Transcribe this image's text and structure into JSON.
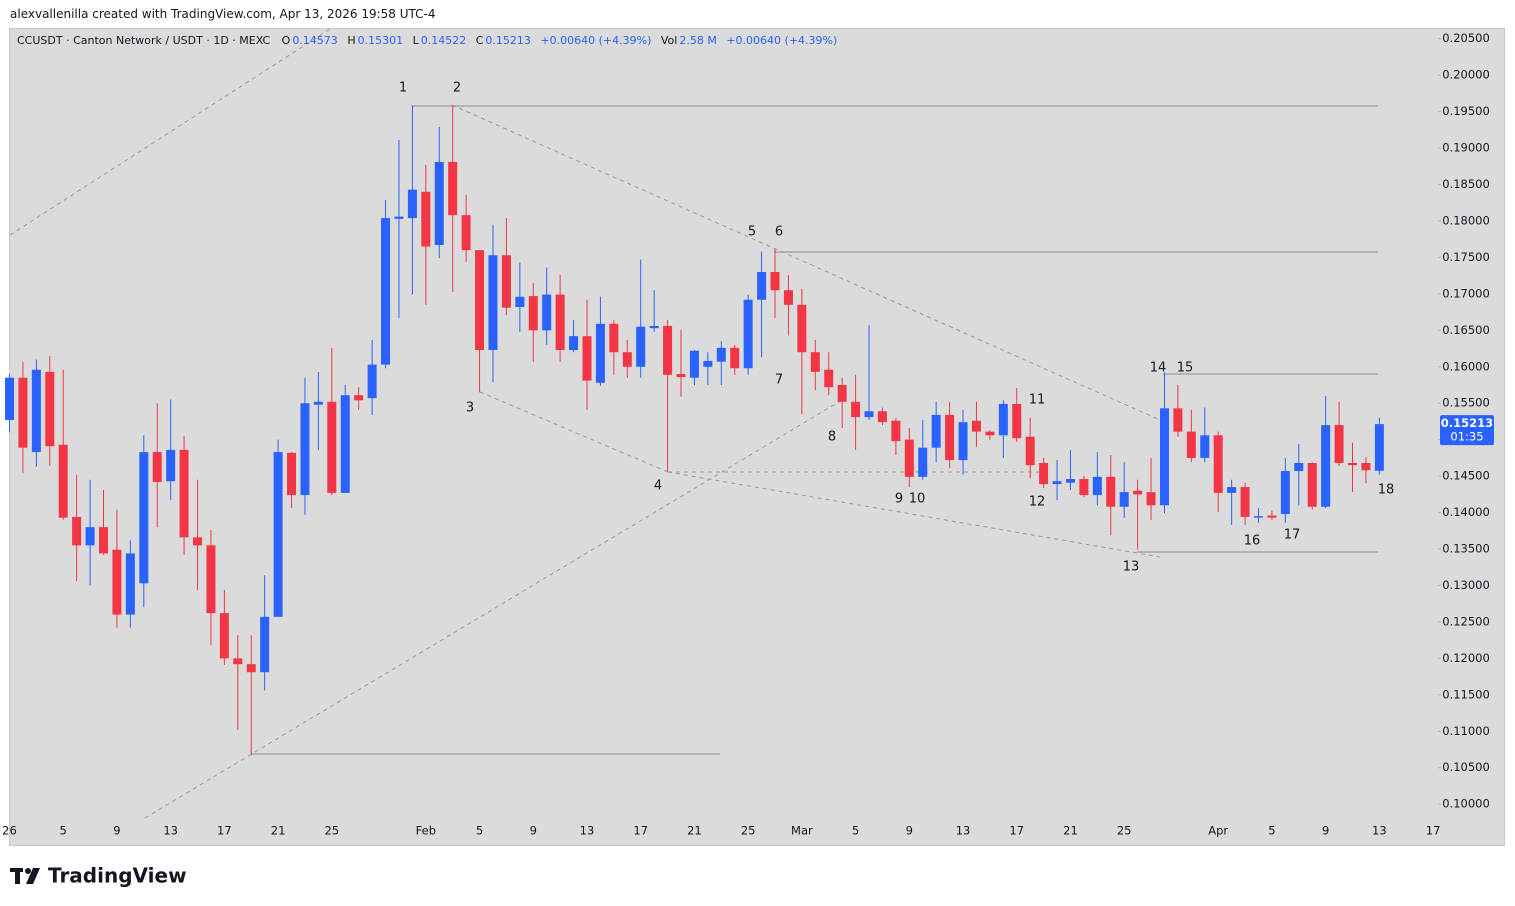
{
  "header": {
    "credit": "alexvallenilla created with TradingView.com, Apr 13, 2026 19:58 UTC-4",
    "symbol": "CCUSDT · Canton Network / USDT · 1D · MEXC",
    "o_label": "O",
    "o_value": "0.14573",
    "h_label": "H",
    "h_value": "0.15301",
    "l_label": "L",
    "l_value": "0.14522",
    "c_label": "C",
    "c_value": "0.15213",
    "change": "+0.00640 (+4.39%)",
    "vol_label": "Vol",
    "vol_value": "2.58 M",
    "vol_change": "+0.00640 (+4.39%)"
  },
  "footer": {
    "brand": "TradingView"
  },
  "chart_data": {
    "type": "candlestick",
    "up_color": "#2962ff",
    "down_color": "#f23645",
    "last_label": "0.15213",
    "countdown": "01:35",
    "annotations": [
      "1",
      "2",
      "3",
      "4",
      "5",
      "6",
      "7",
      "8",
      "9",
      "10",
      "11",
      "12",
      "13",
      "14",
      "15",
      "16",
      "17",
      "18"
    ],
    "categories": [
      "26",
      null,
      null,
      null,
      "5",
      null,
      null,
      null,
      "9",
      null,
      null,
      null,
      "13",
      null,
      null,
      null,
      "17",
      null,
      null,
      null,
      "21",
      null,
      null,
      null,
      "25",
      null,
      null,
      null,
      null,
      null,
      null,
      "Feb",
      null,
      null,
      null,
      "5",
      null,
      null,
      null,
      "9",
      null,
      null,
      null,
      "13",
      null,
      null,
      null,
      "17",
      null,
      null,
      null,
      "21",
      null,
      null,
      null,
      "25",
      null,
      null,
      null,
      "Mar",
      null,
      null,
      null,
      "5",
      null,
      null,
      null,
      "9",
      null,
      null,
      null,
      "13",
      null,
      null,
      null,
      "17",
      null,
      null,
      null,
      "21",
      null,
      null,
      null,
      "25",
      null,
      null,
      null,
      null,
      null,
      null,
      "Apr",
      null,
      null,
      null,
      "5",
      null,
      null,
      null,
      "9",
      null,
      null,
      null,
      "13",
      null,
      null,
      null,
      "17"
    ],
    "open": [
      0.1527,
      0.1585,
      0.1483,
      0.1593,
      0.1493,
      0.1394,
      0.1355,
      0.138,
      0.1349,
      0.126,
      0.1303,
      0.1483,
      0.1443,
      0.1486,
      0.1366,
      0.1355,
      0.1262,
      0.12,
      0.1192,
      0.1181,
      0.1257,
      0.1482,
      0.1424,
      0.1548,
      0.1552,
      0.1427,
      0.1561,
      0.1557,
      0.1603,
      0.1803,
      0.1804,
      0.184,
      0.1767,
      0.1881,
      0.1808,
      0.176,
      0.1623,
      0.1753,
      0.1682,
      0.1697,
      0.165,
      0.1699,
      0.1623,
      0.1642,
      0.1578,
      0.1659,
      0.162,
      0.16,
      0.1653,
      0.1656,
      0.159,
      0.1585,
      0.16,
      0.1607,
      0.1626,
      0.1598,
      0.1692,
      0.173,
      0.1705,
      0.1685,
      0.162,
      0.1596,
      0.1575,
      0.1552,
      0.1531,
      0.1539,
      0.1526,
      0.15,
      0.1449,
      0.1489,
      0.1534,
      0.1472,
      0.1526,
      0.1511,
      0.1506,
      0.1549,
      0.1504,
      0.1468,
      0.1439,
      0.1441,
      0.1446,
      0.1424,
      0.1449,
      0.1408,
      0.143,
      0.1428,
      0.141,
      0.1543,
      0.1511,
      0.1475,
      0.1506,
      0.1427,
      0.1435,
      0.1393,
      0.1396,
      0.1398,
      0.1457,
      0.1468,
      0.1408,
      0.152,
      0.1468,
      0.1468,
      0.14573,
      null,
      null,
      null,
      null
    ],
    "high": [
      0.159,
      0.1607,
      0.161,
      0.1615,
      0.1596,
      0.1452,
      0.1445,
      0.1431,
      0.1404,
      0.1362,
      0.1506,
      0.155,
      0.1555,
      0.1505,
      0.1445,
      0.1376,
      0.1294,
      0.1232,
      0.1232,
      0.1314,
      0.15,
      0.1483,
      0.1585,
      0.1593,
      0.1626,
      0.1575,
      0.1572,
      0.1637,
      0.1829,
      0.1911,
      0.1959,
      0.1877,
      0.1929,
      0.1959,
      0.1836,
      0.176,
      0.1795,
      0.1804,
      0.1743,
      0.1715,
      0.1736,
      0.1726,
      0.1664,
      0.1692,
      0.1696,
      0.1664,
      0.1637,
      0.1747,
      0.1705,
      0.1664,
      0.1651,
      0.1623,
      0.162,
      0.1635,
      0.163,
      0.1699,
      0.1758,
      0.1762,
      0.1726,
      0.1707,
      0.1637,
      0.162,
      0.1585,
      0.1589,
      0.1657,
      0.1544,
      0.153,
      0.1516,
      0.1527,
      0.1552,
      0.1552,
      0.1541,
      0.1552,
      0.1513,
      0.1554,
      0.1571,
      0.153,
      0.1475,
      0.1472,
      0.1486,
      0.145,
      0.1483,
      0.1479,
      0.1469,
      0.1445,
      0.1475,
      0.1592,
      0.1575,
      0.1541,
      0.1544,
      0.1511,
      0.1445,
      0.1441,
      0.1406,
      0.1403,
      0.1475,
      0.1494,
      0.1469,
      0.156,
      0.1552,
      0.1496,
      0.1476,
      0.15301,
      null,
      null,
      null,
      null
    ],
    "low": [
      0.151,
      0.1454,
      0.1463,
      0.1464,
      0.139,
      0.1306,
      0.13,
      0.1342,
      0.1242,
      0.1242,
      0.127,
      0.138,
      0.1417,
      0.1342,
      0.1294,
      0.1218,
      0.1191,
      0.1102,
      0.1067,
      0.1156,
      0.1257,
      0.1406,
      0.1397,
      0.1486,
      0.1424,
      0.1427,
      0.1541,
      0.1534,
      0.1598,
      0.1667,
      0.1699,
      0.1685,
      0.1749,
      0.1703,
      0.1744,
      0.1565,
      0.1579,
      0.1671,
      0.1648,
      0.1607,
      0.163,
      0.1607,
      0.162,
      0.1541,
      0.1574,
      0.1589,
      0.1585,
      0.1585,
      0.1648,
      0.1456,
      0.1559,
      0.1575,
      0.1575,
      0.1575,
      0.1589,
      0.1589,
      0.1613,
      0.1667,
      0.1644,
      0.1535,
      0.1568,
      0.1561,
      0.1516,
      0.1486,
      0.1527,
      0.152,
      0.1479,
      0.1435,
      0.1445,
      0.1469,
      0.1461,
      0.1452,
      0.149,
      0.15,
      0.1475,
      0.1497,
      0.1447,
      0.1434,
      0.1417,
      0.1431,
      0.1421,
      0.141,
      0.1369,
      0.1393,
      0.1349,
      0.139,
      0.1399,
      0.1504,
      0.1469,
      0.1469,
      0.1401,
      0.1383,
      0.1383,
      0.1386,
      0.139,
      0.1386,
      0.141,
      0.1404,
      0.1406,
      0.1464,
      0.1428,
      0.144,
      0.14522,
      null,
      null,
      null,
      null
    ],
    "close": [
      0.1585,
      0.1489,
      0.1596,
      0.1491,
      0.1393,
      0.1355,
      0.138,
      0.1344,
      0.126,
      0.1344,
      0.1483,
      0.1442,
      0.1486,
      0.1366,
      0.1355,
      0.1262,
      0.12,
      0.1192,
      0.1181,
      0.1257,
      0.1483,
      0.1424,
      0.155,
      0.1552,
      0.1427,
      0.1561,
      0.1554,
      0.1603,
      0.1804,
      0.1806,
      0.1843,
      0.1765,
      0.1881,
      0.1808,
      0.176,
      0.1623,
      0.1753,
      0.1681,
      0.1696,
      0.165,
      0.1699,
      0.1623,
      0.1642,
      0.1581,
      0.1659,
      0.162,
      0.16,
      0.1655,
      0.1656,
      0.1589,
      0.1586,
      0.1622,
      0.1608,
      0.1626,
      0.1598,
      0.1692,
      0.173,
      0.1705,
      0.1685,
      0.162,
      0.1593,
      0.1572,
      0.1552,
      0.1531,
      0.1539,
      0.1524,
      0.1498,
      0.1449,
      0.1489,
      0.1534,
      0.1472,
      0.1524,
      0.1511,
      0.1506,
      0.1549,
      0.1502,
      0.1465,
      0.1439,
      0.1443,
      0.1446,
      0.1424,
      0.1449,
      0.1408,
      0.1428,
      0.1425,
      0.141,
      0.1543,
      0.1511,
      0.1475,
      0.1506,
      0.1427,
      0.1435,
      0.1394,
      0.1395,
      0.1393,
      0.1457,
      0.1468,
      0.1408,
      0.152,
      0.1468,
      0.1465,
      0.1458,
      0.15213,
      null,
      null,
      null,
      null
    ],
    "ylim": [
      0.0981,
      0.2062
    ],
    "yticks": [
      {
        "value": 0.1,
        "label": "0.10000"
      },
      {
        "value": 0.105,
        "label": "0.10500"
      },
      {
        "value": 0.11,
        "label": "0.11000"
      },
      {
        "value": 0.115,
        "label": "0.11500"
      },
      {
        "value": 0.12,
        "label": "0.12000"
      },
      {
        "value": 0.125,
        "label": "0.12500"
      },
      {
        "value": 0.13,
        "label": "0.13000"
      },
      {
        "value": 0.135,
        "label": "0.13500"
      },
      {
        "value": 0.14,
        "label": "0.14000"
      },
      {
        "value": 0.145,
        "label": "0.14500"
      },
      {
        "value": 0.15,
        "label": "0.15000"
      },
      {
        "value": 0.155,
        "label": "0.15500"
      },
      {
        "value": 0.16,
        "label": "0.16000"
      },
      {
        "value": 0.165,
        "label": "0.16500"
      },
      {
        "value": 0.17,
        "label": "0.17000"
      },
      {
        "value": 0.175,
        "label": "0.17500"
      },
      {
        "value": 0.18,
        "label": "0.18000"
      },
      {
        "value": 0.185,
        "label": "0.18500"
      },
      {
        "value": 0.19,
        "label": "0.19000"
      },
      {
        "value": 0.195,
        "label": "0.19500"
      },
      {
        "value": 0.2,
        "label": "0.20000"
      },
      {
        "value": 0.205,
        "label": "0.20500"
      }
    ],
    "grid": false
  }
}
